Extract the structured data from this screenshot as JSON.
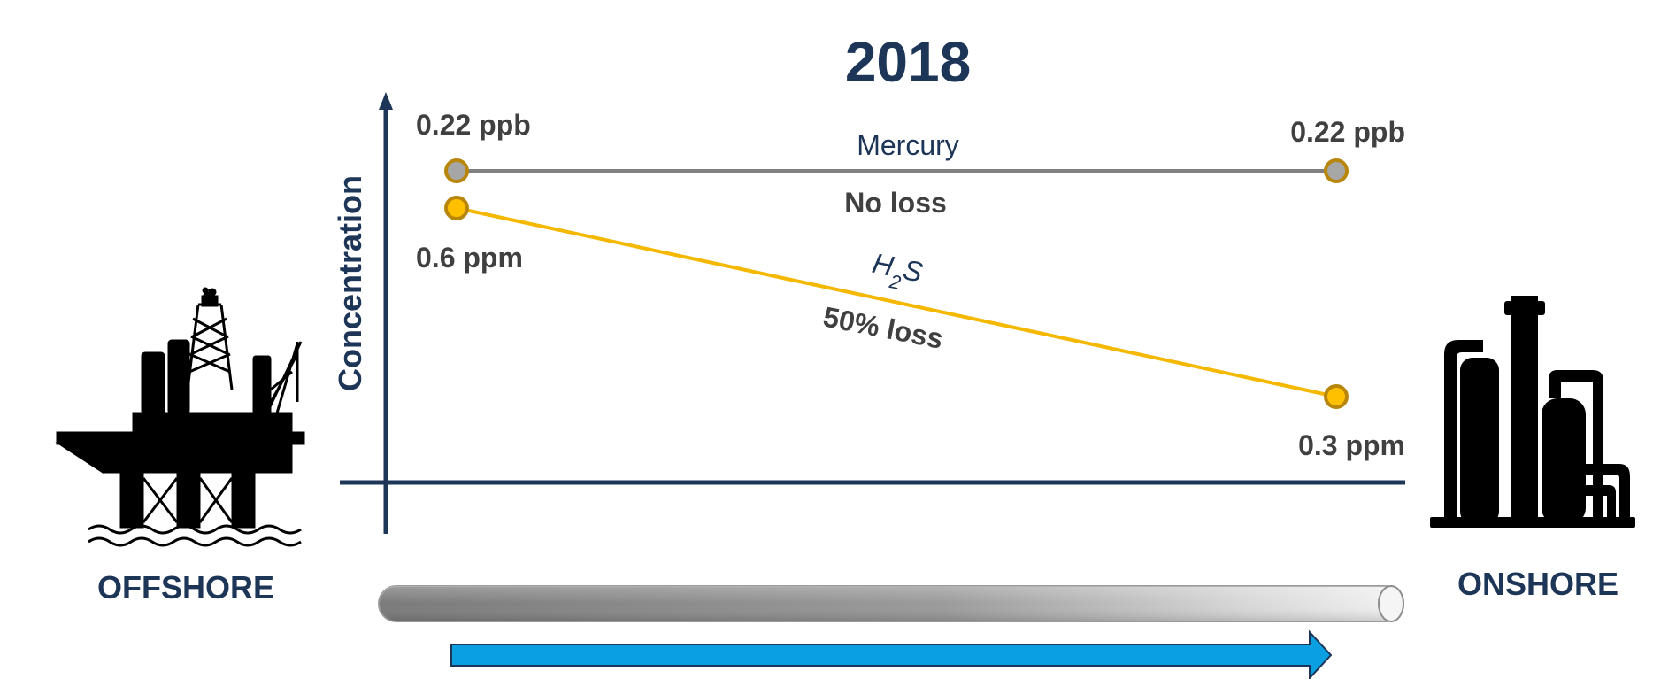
{
  "chart_data": {
    "type": "line",
    "title": "2018",
    "ylabel": "Concentration",
    "x": [
      "OFFSHORE",
      "ONSHORE"
    ],
    "series": [
      {
        "name": "Mercury",
        "values": [
          0.22,
          0.22
        ],
        "value_labels": [
          "0.22 ppb",
          "0.22 ppb"
        ],
        "annotation": "No loss",
        "color": "#808080",
        "marker_fill": "#a6a6a6",
        "marker_stroke": "#b8860b"
      },
      {
        "name_main": "H",
        "name_sub": "2",
        "name_tail": "S",
        "values": [
          0.6,
          0.3
        ],
        "value_labels": [
          "0.6 ppm",
          "0.3 ppm"
        ],
        "annotation": "50% loss",
        "color": "#f5b800",
        "marker_fill": "#ffc000",
        "marker_stroke": "#b8860b"
      }
    ],
    "grid": false,
    "legend": "none"
  },
  "labels": {
    "offshore": "OFFSHORE",
    "onshore": "ONSHORE"
  },
  "colors": {
    "axis": "#1d3557",
    "pipe": "#8c8c8c",
    "flow_arrow": "#0a9fe0"
  },
  "icons": {
    "left": "offshore-oil-platform-icon",
    "right": "onshore-refinery-icon"
  }
}
